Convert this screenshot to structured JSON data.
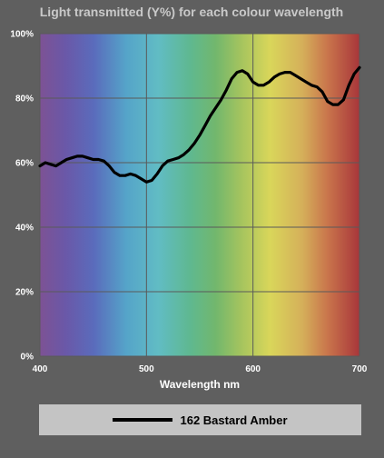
{
  "chart_data": {
    "type": "line",
    "title": "Light transmitted (Y%) for each colour wavelength",
    "xlabel": "Wavelength nm",
    "ylabel": "",
    "xlim": [
      400,
      700
    ],
    "ylim": [
      0,
      100
    ],
    "x_ticks": [
      "400",
      "500",
      "600",
      "700"
    ],
    "y_ticks": [
      "0%",
      "20%",
      "40%",
      "60%",
      "80%",
      "100%"
    ],
    "grid": true,
    "legend_position": "bottom",
    "series": [
      {
        "name": "162 Bastard Amber",
        "color": "#000000",
        "x": [
          400,
          405,
          410,
          415,
          420,
          425,
          430,
          435,
          440,
          445,
          450,
          455,
          460,
          465,
          470,
          475,
          480,
          485,
          490,
          495,
          500,
          505,
          510,
          515,
          520,
          525,
          530,
          535,
          540,
          545,
          550,
          555,
          560,
          565,
          570,
          575,
          580,
          585,
          590,
          595,
          600,
          605,
          610,
          615,
          620,
          625,
          630,
          635,
          640,
          645,
          650,
          655,
          660,
          665,
          670,
          675,
          680,
          685,
          690,
          695,
          700
        ],
        "values": [
          59,
          60,
          59.5,
          59,
          60,
          61,
          61.5,
          62,
          62,
          61.5,
          61,
          61,
          60.5,
          59,
          57,
          56,
          56,
          56.5,
          56,
          55,
          54,
          54.5,
          56.5,
          59,
          60.5,
          61,
          61.5,
          62.5,
          64,
          66,
          68.5,
          71.5,
          74.5,
          77,
          79.5,
          82.5,
          86,
          88,
          88.5,
          87.5,
          85,
          84,
          84,
          85,
          86.5,
          87.5,
          88,
          88,
          87,
          86,
          85,
          84,
          83.5,
          82,
          79,
          78,
          78,
          79.5,
          84,
          87.5,
          89.5
        ]
      }
    ]
  }
}
